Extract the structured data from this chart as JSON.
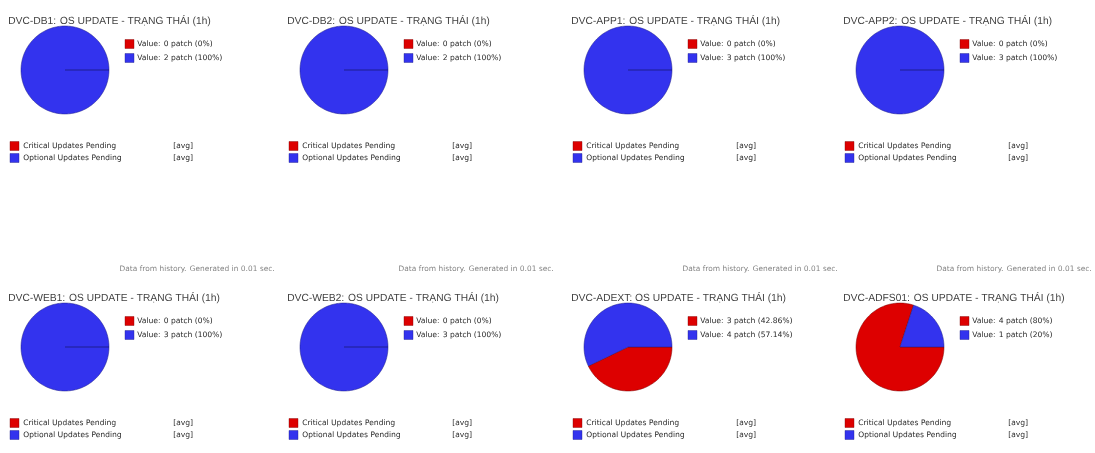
{
  "chart_data": [
    {
      "type": "pie",
      "title": "DVC-DB1: OS UPDATE - TRẠNG THÁI (1h)",
      "categories": [
        "Critical Updates Pending",
        "Optional Updates Pending"
      ],
      "values": [
        0,
        100
      ],
      "colors": [
        "#dd0000",
        "#3333ee"
      ],
      "legend": "bottom",
      "annotations": [
        "Value: 0 patch (0%)",
        "Value: 2 patch (100%)",
        "[avg]",
        "[avg]",
        "Data from history. Generated in 0.01 sec."
      ]
    },
    {
      "type": "pie",
      "title": "DVC-DB2: OS UPDATE - TRẠNG THÁI (1h)",
      "categories": [
        "Critical Updates Pending",
        "Optional Updates Pending"
      ],
      "values": [
        0,
        100
      ],
      "colors": [
        "#dd0000",
        "#3333ee"
      ],
      "legend": "bottom",
      "annotations": [
        "Value: 0 patch (0%)",
        "Value: 2 patch (100%)",
        "[avg]",
        "[avg]",
        "Data from history. Generated in 0.01 sec."
      ]
    },
    {
      "type": "pie",
      "title": "DVC-APP1: OS UPDATE - TRẠNG THÁI (1h)",
      "categories": [
        "Critical Updates Pending",
        "Optional Updates Pending"
      ],
      "values": [
        0,
        100
      ],
      "colors": [
        "#dd0000",
        "#3333ee"
      ],
      "legend": "bottom",
      "annotations": [
        "Value: 0 patch (0%)",
        "Value: 3 patch (100%)",
        "[avg]",
        "[avg]",
        "Data from history. Generated in 0.01 sec."
      ]
    },
    {
      "type": "pie",
      "title": "DVC-APP2: OS UPDATE - TRẠNG THÁI (1h)",
      "categories": [
        "Critical Updates Pending",
        "Optional Updates Pending"
      ],
      "values": [
        0,
        100
      ],
      "colors": [
        "#dd0000",
        "#3333ee"
      ],
      "legend": "bottom",
      "annotations": [
        "Value: 0 patch (0%)",
        "Value: 3 patch (100%)",
        "[avg]",
        "[avg]",
        "Data from history. Generated in 0.01 sec."
      ]
    },
    {
      "type": "pie",
      "title": "DVC-WEB1: OS UPDATE - TRẠNG THÁI (1h)",
      "categories": [
        "Critical Updates Pending",
        "Optional Updates Pending"
      ],
      "values": [
        0,
        100
      ],
      "colors": [
        "#dd0000",
        "#3333ee"
      ],
      "legend": "bottom",
      "annotations": [
        "Value: 0 patch (0%)",
        "Value: 3 patch (100%)",
        "[avg]",
        "[avg]"
      ]
    },
    {
      "type": "pie",
      "title": "DVC-WEB2: OS UPDATE - TRẠNG THÁI (1h)",
      "categories": [
        "Critical Updates Pending",
        "Optional Updates Pending"
      ],
      "values": [
        0,
        100
      ],
      "colors": [
        "#dd0000",
        "#3333ee"
      ],
      "legend": "bottom",
      "annotations": [
        "Value: 0 patch (0%)",
        "Value: 3 patch (100%)",
        "[avg]",
        "[avg]"
      ]
    },
    {
      "type": "pie",
      "title": "DVC-ADEXT: OS UPDATE - TRẠNG THÁI (1h)",
      "categories": [
        "Critical Updates Pending",
        "Optional Updates Pending"
      ],
      "values": [
        42.86,
        57.14
      ],
      "colors": [
        "#dd0000",
        "#3333ee"
      ],
      "legend": "bottom",
      "annotations": [
        "Value: 3 patch (42.86%)",
        "Value: 4 patch (57.14%)",
        "[avg]",
        "[avg]"
      ]
    },
    {
      "type": "pie",
      "title": "DVC-ADFS01: OS UPDATE - TRẠNG THÁI (1h)",
      "categories": [
        "Critical Updates Pending",
        "Optional Updates Pending"
      ],
      "values": [
        80,
        20
      ],
      "colors": [
        "#dd0000",
        "#3333ee"
      ],
      "legend": "bottom",
      "annotations": [
        "Value: 4 patch (80%)",
        "Value: 1 patch (20%)",
        "[avg]",
        "[avg]"
      ]
    }
  ]
}
